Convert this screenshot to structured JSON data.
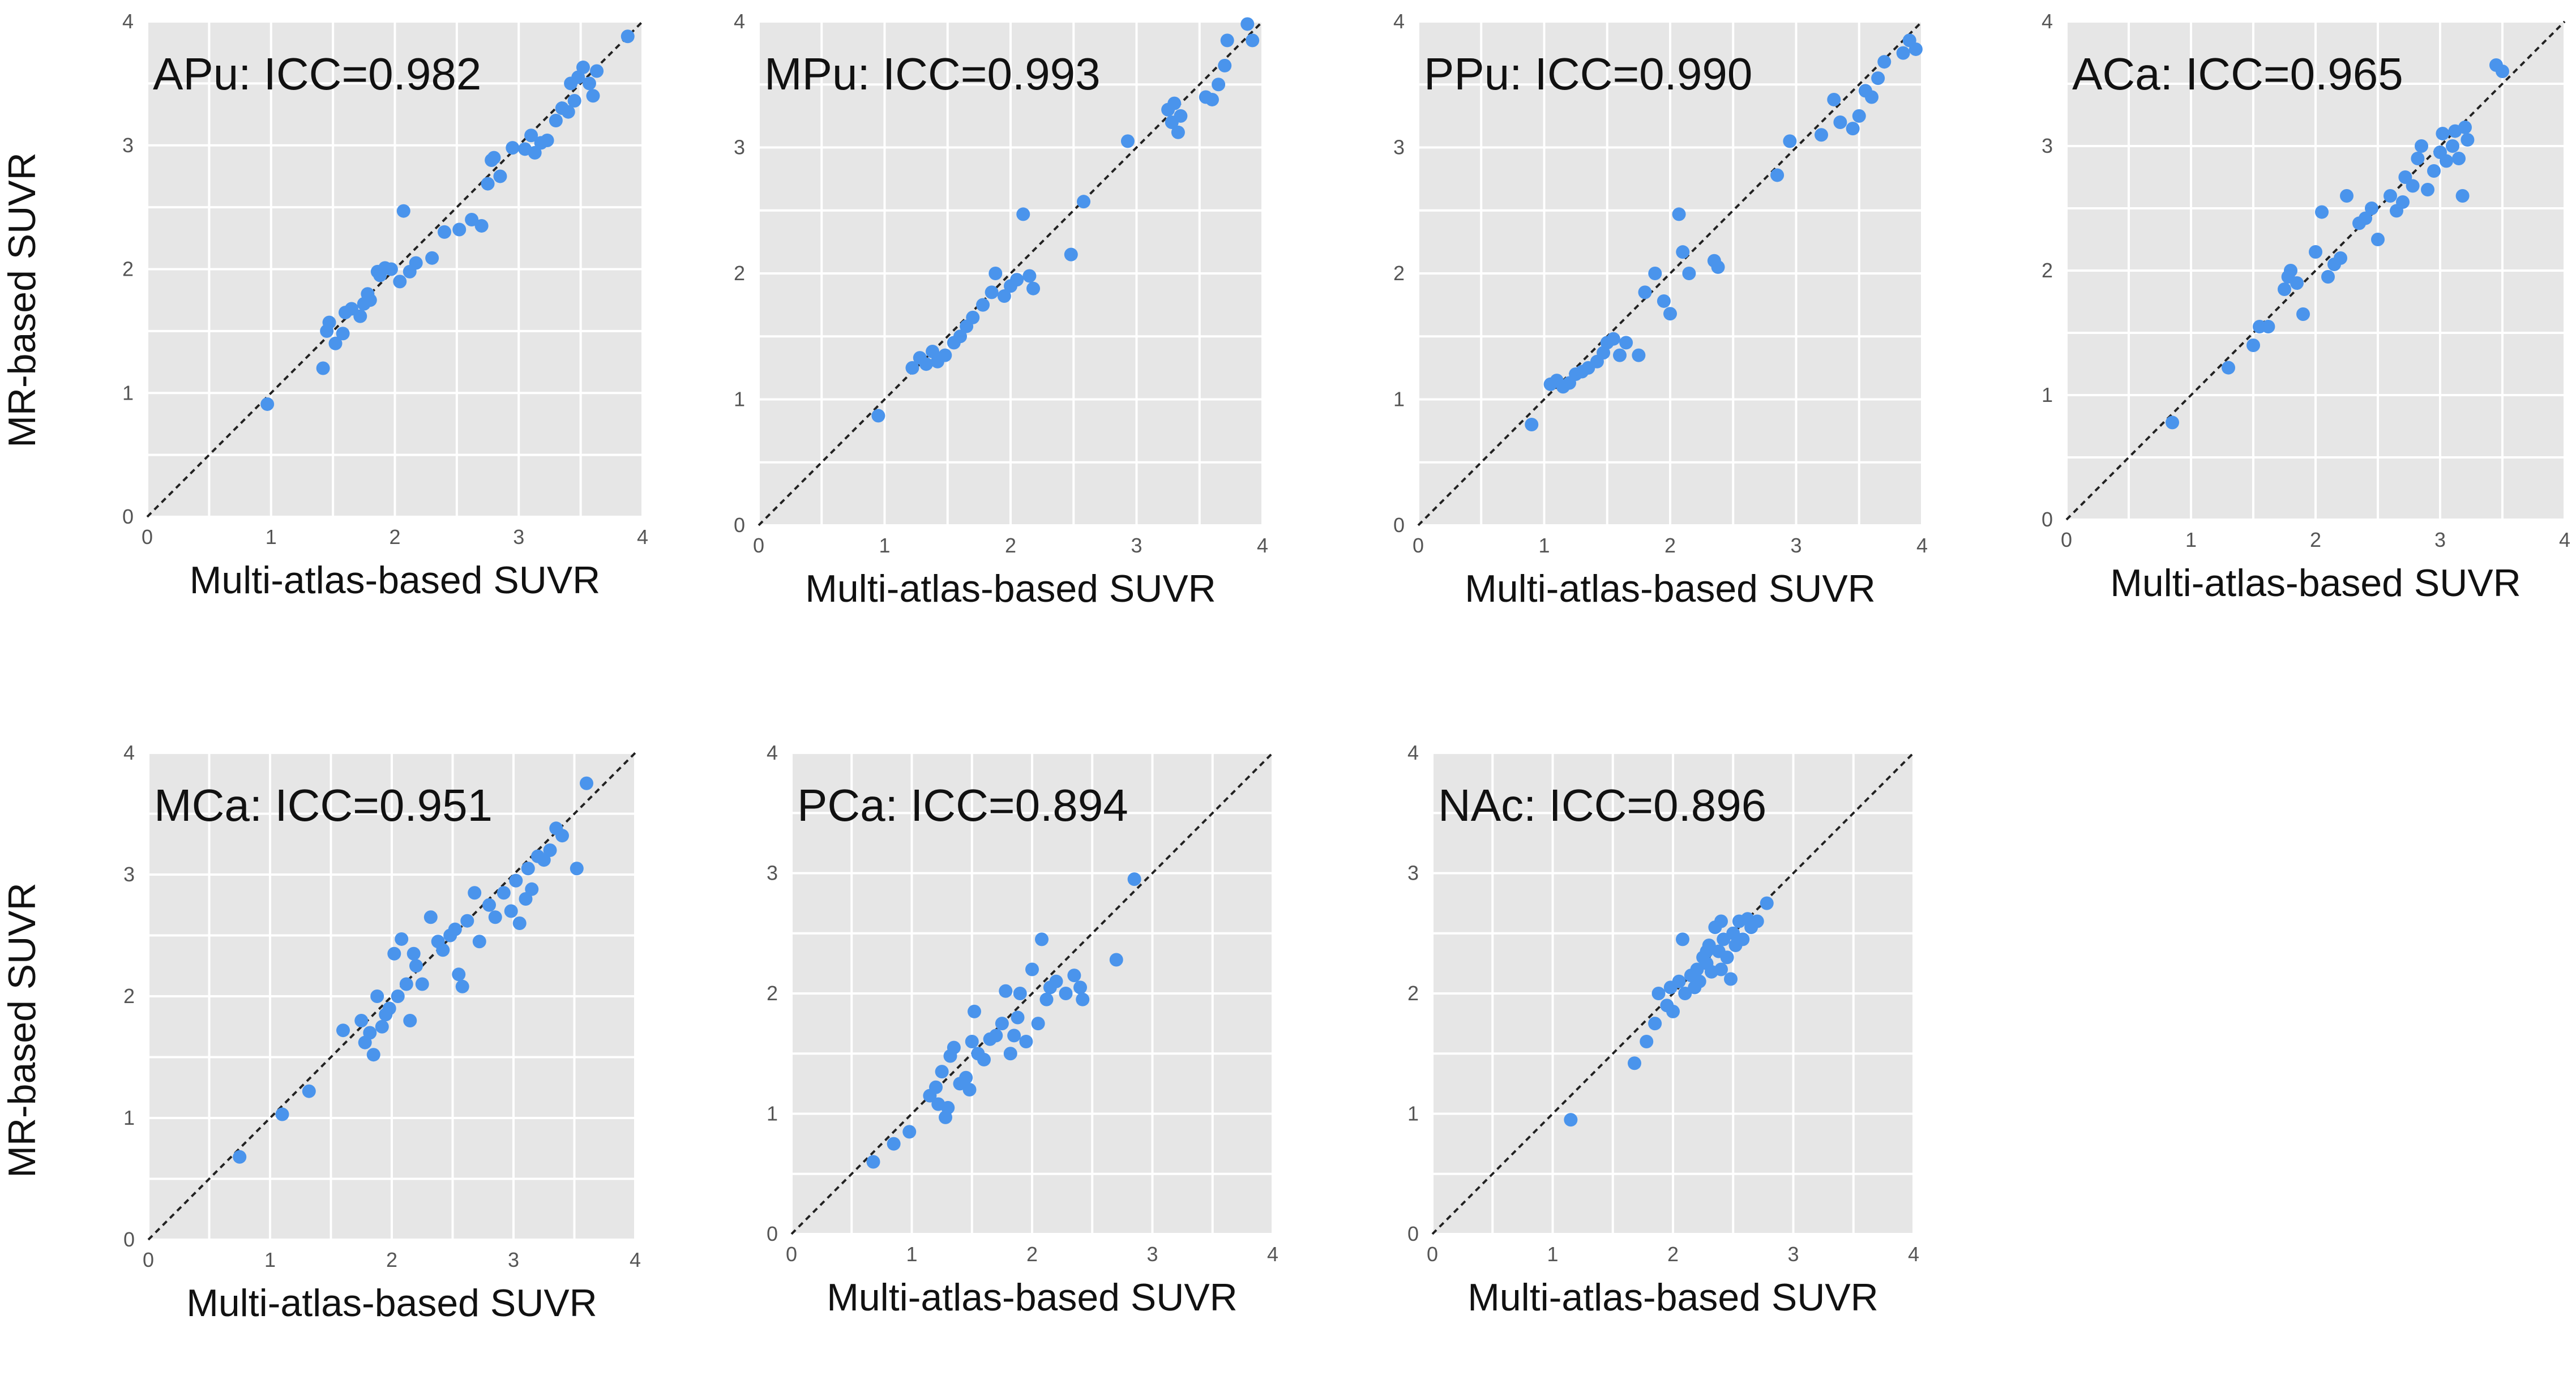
{
  "figure": {
    "shared_ylabel": "MR-based SUVR",
    "shared_xlabel": "Multi-atlas-based SUVR",
    "point_color": "#4a94ec",
    "panel_bg_color": "#e6e6e6"
  },
  "chart_data": [
    {
      "type": "scatter",
      "title": "APu: ICC=0.982",
      "xlabel": "Multi-atlas-based SUVR",
      "ylabel": "MR-based SUVR",
      "xlim": [
        0,
        4
      ],
      "ylim": [
        0,
        4
      ],
      "xticks": [
        "0",
        "1",
        "2",
        "3",
        "4"
      ],
      "yticks": [
        "0",
        "1",
        "2",
        "3",
        "4"
      ],
      "identity_line": true,
      "points": [
        [
          0.97,
          0.91
        ],
        [
          1.42,
          1.2
        ],
        [
          1.45,
          1.5
        ],
        [
          1.47,
          1.57
        ],
        [
          1.52,
          1.4
        ],
        [
          1.58,
          1.48
        ],
        [
          1.6,
          1.65
        ],
        [
          1.65,
          1.68
        ],
        [
          1.72,
          1.62
        ],
        [
          1.75,
          1.72
        ],
        [
          1.78,
          1.8
        ],
        [
          1.8,
          1.75
        ],
        [
          1.86,
          1.98
        ],
        [
          1.88,
          1.95
        ],
        [
          1.92,
          2.01
        ],
        [
          1.97,
          2.0
        ],
        [
          2.04,
          1.9
        ],
        [
          2.07,
          2.47
        ],
        [
          2.12,
          1.98
        ],
        [
          2.17,
          2.05
        ],
        [
          2.3,
          2.09
        ],
        [
          2.4,
          2.3
        ],
        [
          2.52,
          2.32
        ],
        [
          2.62,
          2.4
        ],
        [
          2.7,
          2.35
        ],
        [
          2.75,
          2.69
        ],
        [
          2.78,
          2.88
        ],
        [
          2.8,
          2.9
        ],
        [
          2.85,
          2.75
        ],
        [
          2.95,
          2.98
        ],
        [
          3.05,
          2.97
        ],
        [
          3.1,
          3.08
        ],
        [
          3.13,
          2.94
        ],
        [
          3.18,
          3.02
        ],
        [
          3.23,
          3.04
        ],
        [
          3.3,
          3.2
        ],
        [
          3.35,
          3.3
        ],
        [
          3.4,
          3.27
        ],
        [
          3.42,
          3.5
        ],
        [
          3.45,
          3.36
        ],
        [
          3.48,
          3.55
        ],
        [
          3.52,
          3.63
        ],
        [
          3.57,
          3.5
        ],
        [
          3.6,
          3.4
        ],
        [
          3.63,
          3.6
        ],
        [
          3.88,
          3.88
        ]
      ]
    },
    {
      "type": "scatter",
      "title": "MPu: ICC=0.993",
      "xlabel": "Multi-atlas-based SUVR",
      "ylabel": "",
      "xlim": [
        0,
        4
      ],
      "ylim": [
        0,
        4
      ],
      "xticks": [
        "0",
        "1",
        "2",
        "3",
        "4"
      ],
      "yticks": [
        "0",
        "1",
        "2",
        "3",
        "4"
      ],
      "identity_line": true,
      "points": [
        [
          0.95,
          0.87
        ],
        [
          1.22,
          1.25
        ],
        [
          1.28,
          1.33
        ],
        [
          1.33,
          1.28
        ],
        [
          1.38,
          1.38
        ],
        [
          1.42,
          1.3
        ],
        [
          1.48,
          1.35
        ],
        [
          1.55,
          1.45
        ],
        [
          1.6,
          1.5
        ],
        [
          1.65,
          1.58
        ],
        [
          1.7,
          1.65
        ],
        [
          1.78,
          1.75
        ],
        [
          1.85,
          1.85
        ],
        [
          1.88,
          2.0
        ],
        [
          1.95,
          1.82
        ],
        [
          2.0,
          1.9
        ],
        [
          2.05,
          1.95
        ],
        [
          2.1,
          2.47
        ],
        [
          2.15,
          1.98
        ],
        [
          2.18,
          1.88
        ],
        [
          2.48,
          2.15
        ],
        [
          2.58,
          2.57
        ],
        [
          2.93,
          3.05
        ],
        [
          3.25,
          3.3
        ],
        [
          3.28,
          3.2
        ],
        [
          3.3,
          3.35
        ],
        [
          3.33,
          3.12
        ],
        [
          3.35,
          3.25
        ],
        [
          3.55,
          3.4
        ],
        [
          3.6,
          3.38
        ],
        [
          3.65,
          3.5
        ],
        [
          3.7,
          3.65
        ],
        [
          3.72,
          3.85
        ],
        [
          3.88,
          3.98
        ],
        [
          3.92,
          3.85
        ]
      ]
    },
    {
      "type": "scatter",
      "title": "PPu: ICC=0.990",
      "xlabel": "Multi-atlas-based SUVR",
      "ylabel": "",
      "xlim": [
        0,
        4
      ],
      "ylim": [
        0,
        4
      ],
      "xticks": [
        "0",
        "1",
        "2",
        "3",
        "4"
      ],
      "yticks": [
        "0",
        "1",
        "2",
        "3",
        "4"
      ],
      "identity_line": true,
      "points": [
        [
          0.9,
          0.8
        ],
        [
          1.05,
          1.12
        ],
        [
          1.1,
          1.15
        ],
        [
          1.15,
          1.1
        ],
        [
          1.2,
          1.13
        ],
        [
          1.25,
          1.2
        ],
        [
          1.3,
          1.22
        ],
        [
          1.35,
          1.25
        ],
        [
          1.42,
          1.3
        ],
        [
          1.47,
          1.37
        ],
        [
          1.5,
          1.45
        ],
        [
          1.55,
          1.48
        ],
        [
          1.6,
          1.35
        ],
        [
          1.65,
          1.45
        ],
        [
          1.75,
          1.35
        ],
        [
          1.8,
          1.85
        ],
        [
          1.88,
          2.0
        ],
        [
          1.95,
          1.78
        ],
        [
          2.0,
          1.68
        ],
        [
          2.07,
          2.47
        ],
        [
          2.1,
          2.17
        ],
        [
          2.15,
          2.0
        ],
        [
          2.35,
          2.1
        ],
        [
          2.38,
          2.05
        ],
        [
          2.85,
          2.78
        ],
        [
          2.95,
          3.05
        ],
        [
          3.2,
          3.1
        ],
        [
          3.3,
          3.38
        ],
        [
          3.35,
          3.2
        ],
        [
          3.45,
          3.15
        ],
        [
          3.5,
          3.25
        ],
        [
          3.55,
          3.45
        ],
        [
          3.6,
          3.4
        ],
        [
          3.65,
          3.55
        ],
        [
          3.7,
          3.68
        ],
        [
          3.85,
          3.75
        ],
        [
          3.9,
          3.85
        ],
        [
          3.95,
          3.78
        ]
      ]
    },
    {
      "type": "scatter",
      "title": "ACa: ICC=0.965",
      "xlabel": "Multi-atlas-based SUVR",
      "ylabel": "",
      "xlim": [
        0,
        4
      ],
      "ylim": [
        0,
        4
      ],
      "xticks": [
        "0",
        "1",
        "2",
        "3",
        "4"
      ],
      "yticks": [
        "0",
        "1",
        "2",
        "3",
        "4"
      ],
      "identity_line": true,
      "points": [
        [
          0.85,
          0.78
        ],
        [
          1.3,
          1.22
        ],
        [
          1.5,
          1.4
        ],
        [
          1.55,
          1.55
        ],
        [
          1.62,
          1.55
        ],
        [
          1.75,
          1.85
        ],
        [
          1.78,
          1.95
        ],
        [
          1.8,
          2.0
        ],
        [
          1.85,
          1.9
        ],
        [
          1.9,
          1.65
        ],
        [
          2.0,
          2.15
        ],
        [
          2.05,
          2.47
        ],
        [
          2.1,
          1.95
        ],
        [
          2.15,
          2.05
        ],
        [
          2.2,
          2.1
        ],
        [
          2.25,
          2.6
        ],
        [
          2.35,
          2.38
        ],
        [
          2.4,
          2.42
        ],
        [
          2.45,
          2.5
        ],
        [
          2.5,
          2.25
        ],
        [
          2.6,
          2.6
        ],
        [
          2.65,
          2.48
        ],
        [
          2.7,
          2.55
        ],
        [
          2.72,
          2.75
        ],
        [
          2.78,
          2.68
        ],
        [
          2.82,
          2.9
        ],
        [
          2.85,
          3.0
        ],
        [
          2.9,
          2.65
        ],
        [
          2.95,
          2.8
        ],
        [
          3.0,
          2.95
        ],
        [
          3.02,
          3.1
        ],
        [
          3.05,
          2.88
        ],
        [
          3.1,
          3.0
        ],
        [
          3.12,
          3.12
        ],
        [
          3.15,
          2.9
        ],
        [
          3.18,
          2.6
        ],
        [
          3.2,
          3.15
        ],
        [
          3.22,
          3.05
        ],
        [
          3.45,
          3.65
        ],
        [
          3.5,
          3.6
        ]
      ]
    },
    {
      "type": "scatter",
      "title": "MCa: ICC=0.951",
      "xlabel": "Multi-atlas-based SUVR",
      "ylabel": "MR-based SUVR",
      "xlim": [
        0,
        4
      ],
      "ylim": [
        0,
        4
      ],
      "xticks": [
        "0",
        "1",
        "2",
        "3",
        "4"
      ],
      "yticks": [
        "0",
        "1",
        "2",
        "3",
        "4"
      ],
      "identity_line": true,
      "points": [
        [
          0.75,
          0.68
        ],
        [
          1.1,
          1.03
        ],
        [
          1.32,
          1.22
        ],
        [
          1.6,
          1.72
        ],
        [
          1.75,
          1.8
        ],
        [
          1.78,
          1.62
        ],
        [
          1.82,
          1.7
        ],
        [
          1.85,
          1.52
        ],
        [
          1.88,
          2.0
        ],
        [
          1.92,
          1.75
        ],
        [
          1.95,
          1.85
        ],
        [
          1.98,
          1.9
        ],
        [
          2.02,
          2.35
        ],
        [
          2.05,
          2.0
        ],
        [
          2.08,
          2.47
        ],
        [
          2.12,
          2.1
        ],
        [
          2.15,
          1.8
        ],
        [
          2.18,
          2.35
        ],
        [
          2.2,
          2.25
        ],
        [
          2.25,
          2.1
        ],
        [
          2.32,
          2.65
        ],
        [
          2.38,
          2.45
        ],
        [
          2.42,
          2.38
        ],
        [
          2.48,
          2.5
        ],
        [
          2.52,
          2.55
        ],
        [
          2.55,
          2.18
        ],
        [
          2.58,
          2.08
        ],
        [
          2.62,
          2.62
        ],
        [
          2.68,
          2.85
        ],
        [
          2.72,
          2.45
        ],
        [
          2.8,
          2.75
        ],
        [
          2.85,
          2.65
        ],
        [
          2.92,
          2.85
        ],
        [
          2.98,
          2.7
        ],
        [
          3.02,
          2.95
        ],
        [
          3.05,
          2.6
        ],
        [
          3.1,
          2.8
        ],
        [
          3.12,
          3.05
        ],
        [
          3.15,
          2.88
        ],
        [
          3.2,
          3.15
        ],
        [
          3.25,
          3.12
        ],
        [
          3.3,
          3.2
        ],
        [
          3.35,
          3.38
        ],
        [
          3.4,
          3.32
        ],
        [
          3.52,
          3.05
        ],
        [
          3.6,
          3.75
        ]
      ]
    },
    {
      "type": "scatter",
      "title": "PCa: ICC=0.894",
      "xlabel": "Multi-atlas-based SUVR",
      "ylabel": "",
      "xlim": [
        0,
        4
      ],
      "ylim": [
        0,
        4
      ],
      "xticks": [
        "0",
        "1",
        "2",
        "3",
        "4"
      ],
      "yticks": [
        "0",
        "1",
        "2",
        "3",
        "4"
      ],
      "identity_line": true,
      "points": [
        [
          0.68,
          0.6
        ],
        [
          0.85,
          0.75
        ],
        [
          0.98,
          0.85
        ],
        [
          1.15,
          1.15
        ],
        [
          1.2,
          1.22
        ],
        [
          1.22,
          1.08
        ],
        [
          1.25,
          1.35
        ],
        [
          1.28,
          0.97
        ],
        [
          1.3,
          1.05
        ],
        [
          1.32,
          1.48
        ],
        [
          1.35,
          1.55
        ],
        [
          1.4,
          1.25
        ],
        [
          1.45,
          1.3
        ],
        [
          1.48,
          1.2
        ],
        [
          1.5,
          1.6
        ],
        [
          1.52,
          1.85
        ],
        [
          1.55,
          1.5
        ],
        [
          1.6,
          1.45
        ],
        [
          1.65,
          1.62
        ],
        [
          1.7,
          1.65
        ],
        [
          1.75,
          1.75
        ],
        [
          1.78,
          2.02
        ],
        [
          1.82,
          1.5
        ],
        [
          1.85,
          1.65
        ],
        [
          1.88,
          1.8
        ],
        [
          1.9,
          2.0
        ],
        [
          1.95,
          1.6
        ],
        [
          2.0,
          2.2
        ],
        [
          2.05,
          1.75
        ],
        [
          2.08,
          2.45
        ],
        [
          2.12,
          1.95
        ],
        [
          2.15,
          2.05
        ],
        [
          2.2,
          2.1
        ],
        [
          2.28,
          2.0
        ],
        [
          2.35,
          2.15
        ],
        [
          2.4,
          2.05
        ],
        [
          2.42,
          1.95
        ],
        [
          2.7,
          2.28
        ],
        [
          2.85,
          2.95
        ]
      ]
    },
    {
      "type": "scatter",
      "title": "NAc: ICC=0.896",
      "xlabel": "Multi-atlas-based SUVR",
      "ylabel": "",
      "xlim": [
        0,
        4
      ],
      "ylim": [
        0,
        4
      ],
      "xticks": [
        "0",
        "1",
        "2",
        "3",
        "4"
      ],
      "yticks": [
        "0",
        "1",
        "2",
        "3",
        "4"
      ],
      "identity_line": true,
      "points": [
        [
          1.15,
          0.95
        ],
        [
          1.68,
          1.42
        ],
        [
          1.78,
          1.6
        ],
        [
          1.85,
          1.75
        ],
        [
          1.88,
          2.0
        ],
        [
          1.95,
          1.9
        ],
        [
          1.98,
          2.05
        ],
        [
          2.0,
          1.85
        ],
        [
          2.05,
          2.1
        ],
        [
          2.08,
          2.45
        ],
        [
          2.1,
          2.0
        ],
        [
          2.15,
          2.15
        ],
        [
          2.18,
          2.05
        ],
        [
          2.2,
          2.2
        ],
        [
          2.22,
          2.1
        ],
        [
          2.25,
          2.3
        ],
        [
          2.28,
          2.25
        ],
        [
          2.3,
          2.4
        ],
        [
          2.32,
          2.18
        ],
        [
          2.35,
          2.55
        ],
        [
          2.38,
          2.35
        ],
        [
          2.4,
          2.2
        ],
        [
          2.42,
          2.45
        ],
        [
          2.45,
          2.3
        ],
        [
          2.48,
          2.12
        ],
        [
          2.5,
          2.5
        ],
        [
          2.52,
          2.4
        ],
        [
          2.55,
          2.6
        ],
        [
          2.58,
          2.45
        ],
        [
          2.62,
          2.62
        ],
        [
          2.65,
          2.55
        ],
        [
          2.7,
          2.6
        ],
        [
          2.78,
          2.75
        ],
        [
          2.4,
          2.6
        ],
        [
          2.28,
          2.35
        ]
      ]
    }
  ]
}
